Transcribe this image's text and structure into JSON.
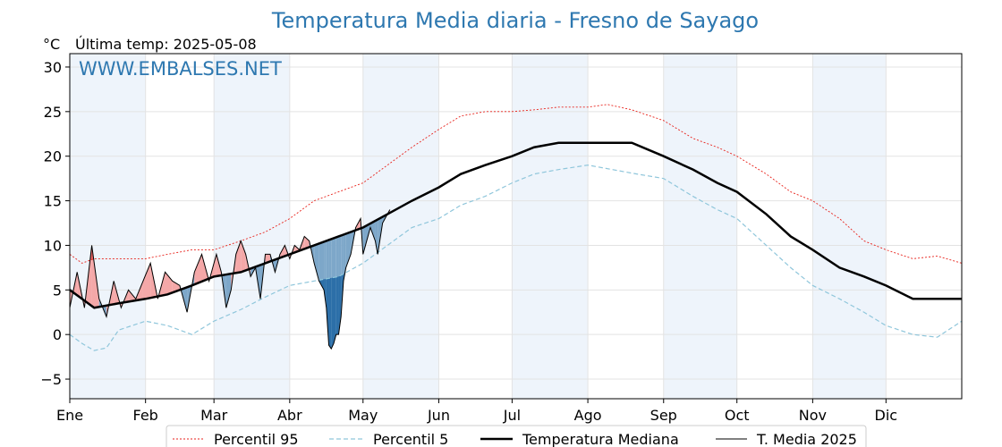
{
  "chart_data": {
    "type": "line",
    "title": "Temperatura Media diaria - Fresno de Sayago",
    "unit": "°C",
    "last_temp": "Última temp: 2025-05-08",
    "watermark": "WWW.EMBALSES.NET",
    "ylim": [
      -7.2,
      31.5
    ],
    "yticks": [
      -5,
      0,
      5,
      10,
      15,
      20,
      25,
      30
    ],
    "xlim": [
      0,
      365
    ],
    "months": [
      "Ene",
      "Feb",
      "Mar",
      "Abr",
      "May",
      "Jun",
      "Jul",
      "Ago",
      "Sep",
      "Oct",
      "Nov",
      "Dic"
    ],
    "month_starts": [
      0,
      31,
      59,
      90,
      120,
      151,
      181,
      212,
      243,
      273,
      304,
      334
    ],
    "grid": true,
    "legend_position": "bottom",
    "colors": {
      "p95": "#e8221b",
      "p5": "#8fc6db",
      "median": "#000000",
      "t2025": "#000000",
      "above": "#f4a8a8",
      "above_dark": "#e35f5f",
      "below": "#7da7c9",
      "below_dark": "#2c6fa8",
      "band": "#eef4fb"
    },
    "series": [
      {
        "name": "Percentil 95",
        "key": "p95",
        "points": [
          [
            0,
            9
          ],
          [
            5,
            8
          ],
          [
            10,
            8.5
          ],
          [
            20,
            8.5
          ],
          [
            31,
            8.5
          ],
          [
            40,
            9
          ],
          [
            50,
            9.5
          ],
          [
            59,
            9.5
          ],
          [
            70,
            10.5
          ],
          [
            80,
            11.5
          ],
          [
            90,
            13
          ],
          [
            100,
            15
          ],
          [
            110,
            16
          ],
          [
            120,
            17
          ],
          [
            130,
            19
          ],
          [
            140,
            21
          ],
          [
            151,
            23
          ],
          [
            160,
            24.5
          ],
          [
            170,
            25
          ],
          [
            181,
            25
          ],
          [
            190,
            25.2
          ],
          [
            200,
            25.5
          ],
          [
            212,
            25.5
          ],
          [
            220,
            25.8
          ],
          [
            230,
            25.2
          ],
          [
            243,
            24
          ],
          [
            255,
            22
          ],
          [
            265,
            21
          ],
          [
            273,
            20
          ],
          [
            285,
            18
          ],
          [
            295,
            16
          ],
          [
            304,
            15
          ],
          [
            315,
            13
          ],
          [
            325,
            10.5
          ],
          [
            334,
            9.5
          ],
          [
            345,
            8.5
          ],
          [
            355,
            8.8
          ],
          [
            365,
            8
          ]
        ]
      },
      {
        "name": "Percentil 5",
        "key": "p5",
        "points": [
          [
            0,
            0
          ],
          [
            5,
            -1
          ],
          [
            10,
            -1.8
          ],
          [
            15,
            -1.5
          ],
          [
            20,
            0.5
          ],
          [
            31,
            1.5
          ],
          [
            40,
            1
          ],
          [
            50,
            0
          ],
          [
            59,
            1.5
          ],
          [
            70,
            2.8
          ],
          [
            80,
            4.2
          ],
          [
            90,
            5.5
          ],
          [
            100,
            6
          ],
          [
            110,
            6.5
          ],
          [
            120,
            8
          ],
          [
            130,
            10
          ],
          [
            140,
            12
          ],
          [
            151,
            13
          ],
          [
            160,
            14.5
          ],
          [
            170,
            15.5
          ],
          [
            181,
            17
          ],
          [
            190,
            18
          ],
          [
            200,
            18.5
          ],
          [
            212,
            19
          ],
          [
            222,
            18.5
          ],
          [
            232,
            18
          ],
          [
            243,
            17.5
          ],
          [
            255,
            15.5
          ],
          [
            265,
            14
          ],
          [
            273,
            13
          ],
          [
            285,
            10
          ],
          [
            295,
            7.5
          ],
          [
            304,
            5.5
          ],
          [
            315,
            4
          ],
          [
            325,
            2.5
          ],
          [
            334,
            1
          ],
          [
            345,
            0
          ],
          [
            355,
            -0.3
          ],
          [
            365,
            1.5
          ]
        ]
      },
      {
        "name": "Temperatura Mediana",
        "key": "median",
        "points": [
          [
            0,
            5
          ],
          [
            5,
            4
          ],
          [
            10,
            3
          ],
          [
            20,
            3.5
          ],
          [
            31,
            4
          ],
          [
            40,
            4.5
          ],
          [
            50,
            5.5
          ],
          [
            59,
            6.5
          ],
          [
            70,
            7
          ],
          [
            80,
            8
          ],
          [
            90,
            9
          ],
          [
            100,
            10
          ],
          [
            110,
            11
          ],
          [
            120,
            12
          ],
          [
            130,
            13.5
          ],
          [
            140,
            15
          ],
          [
            151,
            16.5
          ],
          [
            160,
            18
          ],
          [
            170,
            19
          ],
          [
            181,
            20
          ],
          [
            190,
            21
          ],
          [
            200,
            21.5
          ],
          [
            212,
            21.5
          ],
          [
            220,
            21.5
          ],
          [
            230,
            21.5
          ],
          [
            243,
            20
          ],
          [
            255,
            18.5
          ],
          [
            265,
            17
          ],
          [
            273,
            16
          ],
          [
            285,
            13.5
          ],
          [
            295,
            11
          ],
          [
            304,
            9.5
          ],
          [
            315,
            7.5
          ],
          [
            325,
            6.5
          ],
          [
            334,
            5.5
          ],
          [
            345,
            4
          ],
          [
            355,
            4
          ],
          [
            365,
            4
          ]
        ]
      },
      {
        "name": "T. Media 2025",
        "key": "t2025",
        "points": [
          [
            0,
            3
          ],
          [
            3,
            7
          ],
          [
            6,
            3
          ],
          [
            9,
            10
          ],
          [
            12,
            4
          ],
          [
            15,
            2
          ],
          [
            18,
            6
          ],
          [
            21,
            3
          ],
          [
            24,
            5
          ],
          [
            27,
            4
          ],
          [
            30,
            6
          ],
          [
            33,
            8
          ],
          [
            36,
            4
          ],
          [
            39,
            7
          ],
          [
            42,
            6
          ],
          [
            45,
            5.5
          ],
          [
            48,
            2.5
          ],
          [
            51,
            7
          ],
          [
            54,
            9
          ],
          [
            57,
            6
          ],
          [
            60,
            9
          ],
          [
            62,
            7
          ],
          [
            64,
            3
          ],
          [
            66,
            5
          ],
          [
            68,
            9
          ],
          [
            70,
            10.5
          ],
          [
            72,
            9
          ],
          [
            74,
            6.5
          ],
          [
            76,
            7.5
          ],
          [
            78,
            4
          ],
          [
            80,
            9
          ],
          [
            82,
            9
          ],
          [
            84,
            7
          ],
          [
            86,
            9
          ],
          [
            88,
            10
          ],
          [
            90,
            8.5
          ],
          [
            92,
            10
          ],
          [
            94,
            9.5
          ],
          [
            96,
            11
          ],
          [
            98,
            10.5
          ],
          [
            100,
            8
          ],
          [
            102,
            6
          ],
          [
            104,
            5
          ],
          [
            105,
            3
          ],
          [
            106,
            -1.2
          ],
          [
            107,
            -1.6
          ],
          [
            108,
            -1
          ],
          [
            109,
            0
          ],
          [
            110,
            0
          ],
          [
            111,
            2
          ],
          [
            112,
            6
          ],
          [
            113,
            7.5
          ],
          [
            115,
            9
          ],
          [
            117,
            12
          ],
          [
            119,
            13
          ],
          [
            120,
            9
          ],
          [
            121,
            10
          ],
          [
            123,
            12
          ],
          [
            125,
            10.5
          ],
          [
            126,
            9
          ],
          [
            128,
            12.5
          ],
          [
            130,
            13.5
          ],
          [
            131,
            14
          ]
        ]
      }
    ],
    "legend": [
      "Percentil 95",
      "Percentil 5",
      "Temperatura Mediana",
      "T. Media 2025"
    ]
  }
}
